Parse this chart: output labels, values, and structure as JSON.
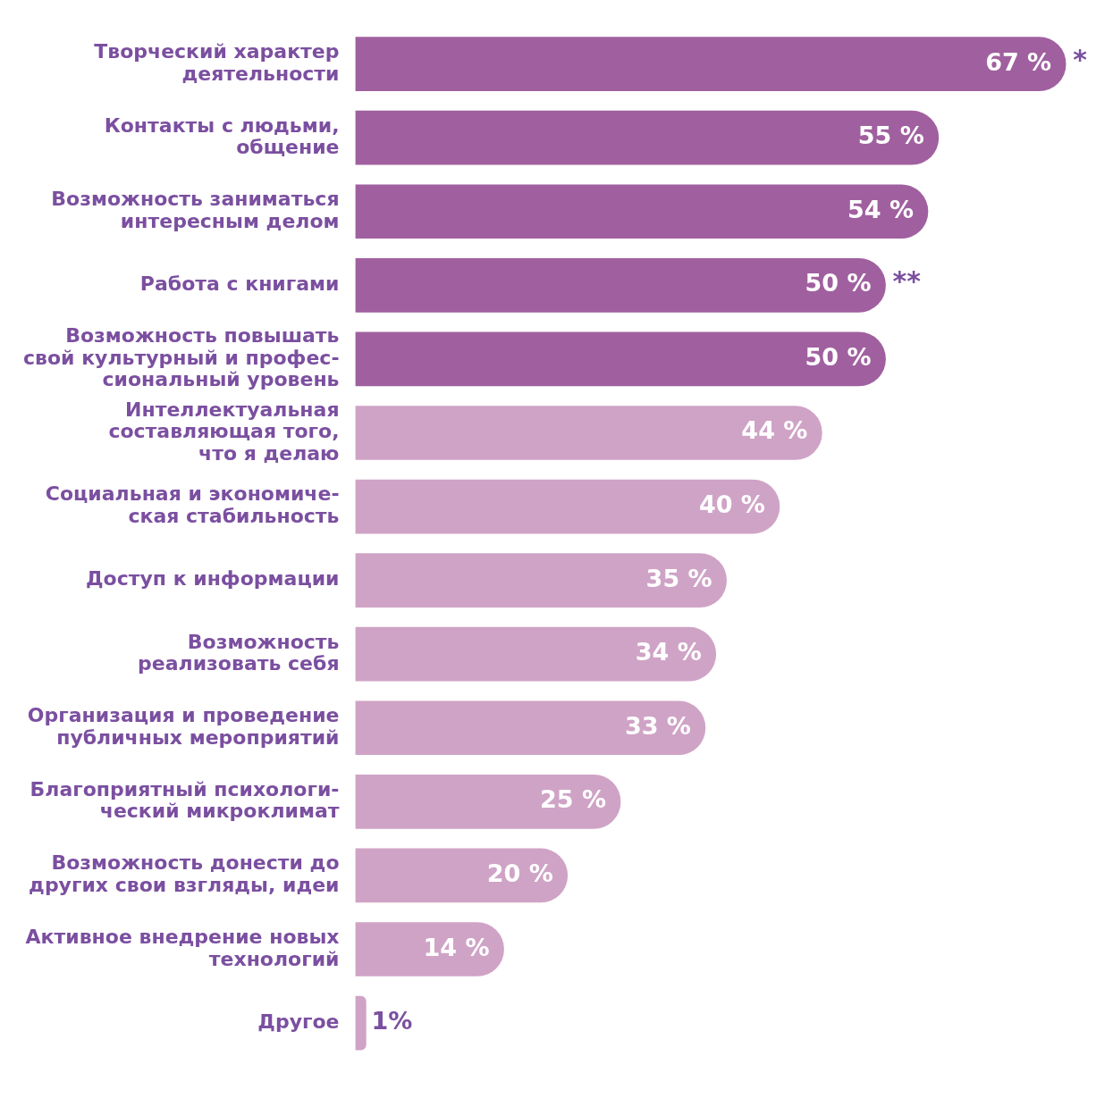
{
  "chart_data": {
    "type": "bar",
    "orientation": "horizontal",
    "categories": [
      "Творческий характер\nдеятельности",
      "Контакты с людьми,\nобщение",
      "Возможность заниматься\nинтересным делом",
      "Работа с книгами",
      "Возможность повышать\nсвой культурный и профес-\nсиональный уровень",
      "Интеллектуальная\nсоставляющая того,\nчто я делаю",
      "Социальная и экономиче-\nская стабильность",
      "Доступ к информации",
      "Возможность\nреализовать себя",
      "Организация и проведение\nпубличных мероприятий",
      "Благоприятный психологи-\nческий микроклимат",
      "Возможность донести до\nдругих свои взгляды, идеи",
      "Активное внедрение новых\nтехнологий",
      "Другое"
    ],
    "values": [
      67,
      55,
      54,
      50,
      50,
      44,
      40,
      35,
      34,
      33,
      25,
      20,
      14,
      1
    ],
    "value_labels": [
      "67 %",
      "55 %",
      "54 %",
      "50 %",
      "50 %",
      "44 %",
      "40 %",
      "35 %",
      "34 %",
      "33 %",
      "25 %",
      "20 %",
      "14 %",
      "1%"
    ],
    "colors": [
      "#a0609f",
      "#a0609f",
      "#a0609f",
      "#a0609f",
      "#a0609f",
      "#cfa3c6",
      "#cfa3c6",
      "#cfa3c6",
      "#cfa3c6",
      "#cfa3c6",
      "#cfa3c6",
      "#cfa3c6",
      "#cfa3c6",
      "#cfa3c6"
    ],
    "annotations": [
      {
        "text": "*",
        "x": 67,
        "y": "Творческий характер\nдеятельности"
      },
      {
        "text": "**",
        "x": 50,
        "y": "Работа с книгами"
      }
    ],
    "grid": false,
    "legend": false
  }
}
